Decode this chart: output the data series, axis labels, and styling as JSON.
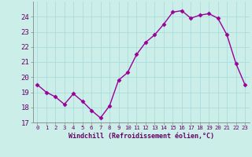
{
  "x": [
    0,
    1,
    2,
    3,
    4,
    5,
    6,
    7,
    8,
    9,
    10,
    11,
    12,
    13,
    14,
    15,
    16,
    17,
    18,
    19,
    20,
    21,
    22,
    23
  ],
  "y": [
    19.5,
    19.0,
    18.7,
    18.2,
    18.9,
    18.4,
    17.8,
    17.3,
    18.1,
    19.8,
    20.3,
    21.5,
    22.3,
    22.8,
    23.5,
    24.3,
    24.4,
    23.9,
    24.1,
    24.2,
    23.9,
    22.8,
    20.9,
    19.5
  ],
  "line_color": "#990099",
  "marker": "D",
  "marker_size": 2.5,
  "bg_color": "#cceee8",
  "grid_color": "#aadddd",
  "xlabel": "Windchill (Refroidissement éolien,°C)",
  "xlabel_color": "#660066",
  "tick_color": "#660066",
  "spine_color": "#888888",
  "ylim": [
    17,
    25
  ],
  "xlim": [
    -0.5,
    23.5
  ],
  "yticks": [
    17,
    18,
    19,
    20,
    21,
    22,
    23,
    24
  ],
  "xticks": [
    0,
    1,
    2,
    3,
    4,
    5,
    6,
    7,
    8,
    9,
    10,
    11,
    12,
    13,
    14,
    15,
    16,
    17,
    18,
    19,
    20,
    21,
    22,
    23
  ],
  "xtick_labels": [
    "0",
    "1",
    "2",
    "3",
    "4",
    "5",
    "6",
    "7",
    "8",
    "9",
    "10",
    "11",
    "12",
    "13",
    "14",
    "15",
    "16",
    "17",
    "18",
    "19",
    "20",
    "21",
    "22",
    "23"
  ],
  "line_width": 1.0,
  "xlabel_fontsize": 6.0,
  "ytick_fontsize": 6.5,
  "xtick_fontsize": 5.2
}
